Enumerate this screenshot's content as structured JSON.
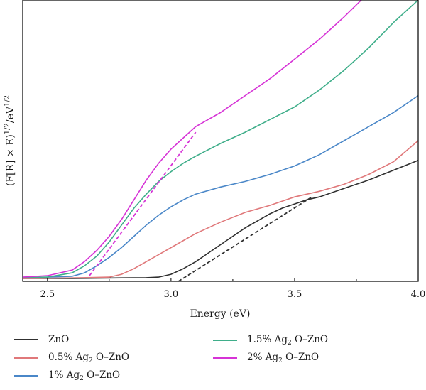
{
  "chart_data": {
    "type": "line",
    "title": "",
    "xlabel": "Energy (eV)",
    "ylabel": "(F[R] × E)^1/2/eV^1/2",
    "ylabel_parts": {
      "base1": "(F[R] × E)",
      "sup1": "1/2",
      "slash": "/eV",
      "sup2": "1/2"
    },
    "xlim": [
      2.4,
      4.0
    ],
    "ylim": [
      0,
      1.0
    ],
    "x_ticks": [
      "2.5",
      "3.0",
      "3.5",
      "4.0"
    ],
    "y_ticks_shown": false,
    "grid": false,
    "legend_placement": "bottom",
    "series": [
      {
        "name": "ZnO",
        "name_parts": [
          "ZnO"
        ],
        "color": "#303030",
        "x": [
          2.4,
          2.6,
          2.8,
          2.9,
          2.95,
          3.0,
          3.05,
          3.1,
          3.15,
          3.2,
          3.25,
          3.3,
          3.35,
          3.4,
          3.45,
          3.5,
          3.55,
          3.6,
          3.7,
          3.8,
          3.9,
          4.0
        ],
        "y": [
          0.01,
          0.01,
          0.012,
          0.013,
          0.015,
          0.025,
          0.045,
          0.07,
          0.1,
          0.13,
          0.16,
          0.19,
          0.215,
          0.24,
          0.26,
          0.275,
          0.29,
          0.3,
          0.33,
          0.36,
          0.395,
          0.43
        ]
      },
      {
        "name": "0.5% Ag2 O–ZnO",
        "name_parts": [
          "0.5% Ag",
          "2",
          " O–ZnO"
        ],
        "color": "#e0787a",
        "x": [
          2.4,
          2.6,
          2.75,
          2.8,
          2.85,
          2.9,
          2.95,
          3.0,
          3.1,
          3.2,
          3.3,
          3.4,
          3.5,
          3.6,
          3.7,
          3.8,
          3.9,
          4.0
        ],
        "y": [
          0.01,
          0.012,
          0.015,
          0.025,
          0.045,
          0.07,
          0.095,
          0.12,
          0.17,
          0.21,
          0.245,
          0.27,
          0.3,
          0.32,
          0.345,
          0.38,
          0.425,
          0.5
        ]
      },
      {
        "name": "1% Ag2 O–ZnO",
        "name_parts": [
          "1% Ag",
          "2",
          " O–ZnO"
        ],
        "color": "#4a87c8",
        "x": [
          2.4,
          2.6,
          2.65,
          2.7,
          2.75,
          2.8,
          2.85,
          2.9,
          2.95,
          3.0,
          3.05,
          3.1,
          3.2,
          3.3,
          3.4,
          3.5,
          3.6,
          3.7,
          3.8,
          3.9,
          4.0
        ],
        "y": [
          0.012,
          0.018,
          0.03,
          0.055,
          0.085,
          0.12,
          0.16,
          0.2,
          0.235,
          0.265,
          0.29,
          0.31,
          0.335,
          0.355,
          0.38,
          0.41,
          0.45,
          0.5,
          0.55,
          0.6,
          0.66
        ]
      },
      {
        "name": "1.5% Ag2 O–ZnO",
        "name_parts": [
          "1.5% Ag",
          "2",
          " O–ZnO"
        ],
        "color": "#3fae8a",
        "x": [
          2.4,
          2.5,
          2.6,
          2.65,
          2.7,
          2.75,
          2.8,
          2.85,
          2.9,
          2.95,
          3.0,
          3.05,
          3.1,
          3.2,
          3.3,
          3.4,
          3.5,
          3.6,
          3.7,
          3.8,
          3.9,
          4.0
        ],
        "y": [
          0.012,
          0.015,
          0.03,
          0.055,
          0.09,
          0.14,
          0.2,
          0.26,
          0.31,
          0.355,
          0.39,
          0.42,
          0.445,
          0.49,
          0.53,
          0.575,
          0.62,
          0.68,
          0.75,
          0.83,
          0.92,
          1.0
        ]
      },
      {
        "name": "2% Ag2 O–ZnO",
        "name_parts": [
          "2% Ag",
          "2",
          " O–ZnO"
        ],
        "color": "#d633d6",
        "x": [
          2.4,
          2.5,
          2.6,
          2.65,
          2.7,
          2.75,
          2.8,
          2.85,
          2.9,
          2.95,
          3.0,
          3.05,
          3.1,
          3.2,
          3.3,
          3.4,
          3.5,
          3.6,
          3.7,
          3.77
        ],
        "y": [
          0.015,
          0.02,
          0.04,
          0.07,
          0.11,
          0.16,
          0.22,
          0.29,
          0.36,
          0.42,
          0.47,
          0.51,
          0.55,
          0.6,
          0.66,
          0.72,
          0.79,
          0.86,
          0.94,
          1.0
        ]
      }
    ],
    "annotations": [
      {
        "kind": "tangent-dashed",
        "color": "#303030",
        "x": [
          3.03,
          3.57
        ],
        "y": [
          0.0,
          0.3
        ]
      },
      {
        "kind": "tangent-dashed",
        "color": "#d633d6",
        "x": [
          2.67,
          3.1
        ],
        "y": [
          0.02,
          0.53
        ]
      }
    ]
  }
}
